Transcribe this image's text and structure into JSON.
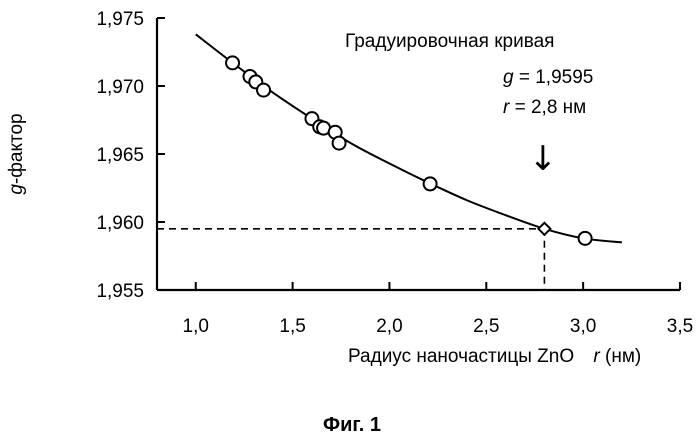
{
  "chart_data": {
    "type": "scatter",
    "xlabel_prefix": "Радиус наночастицы ZnO",
    "xlabel_var": "r",
    "xlabel_unit": " (нм)",
    "ylabel_var": "g",
    "ylabel_rest": "-фактор",
    "xlim": [
      0.8,
      3.5
    ],
    "ylim": [
      1.955,
      1.975
    ],
    "xticks": [
      1.0,
      1.5,
      2.0,
      2.5,
      3.0,
      3.5
    ],
    "xtick_labels": [
      "1,0",
      "1,5",
      "2,0",
      "2,5",
      "3,0",
      "3,5"
    ],
    "yticks": [
      1.955,
      1.96,
      1.965,
      1.97,
      1.975
    ],
    "ytick_labels": [
      "1,955",
      "1,960",
      "1,965",
      "1,970",
      "1,975"
    ],
    "series": [
      {
        "kind": "points",
        "x": [
          1.19,
          1.28,
          1.31,
          1.35,
          1.6,
          1.64,
          1.66,
          1.72,
          1.74,
          2.21,
          3.01
        ],
        "y": [
          1.9717,
          1.9707,
          1.9703,
          1.9697,
          1.9676,
          1.967,
          1.9669,
          1.9666,
          1.9658,
          1.9628,
          1.9588
        ]
      },
      {
        "kind": "fit-curve",
        "x": [
          1.0,
          1.2,
          1.4,
          1.6,
          1.8,
          2.0,
          2.2,
          2.4,
          2.6,
          2.8,
          3.0,
          3.2
        ],
        "y": [
          1.9738,
          1.9716,
          1.9695,
          1.9676,
          1.9658,
          1.9643,
          1.9629,
          1.9616,
          1.9605,
          1.9595,
          1.9588,
          1.9585
        ]
      }
    ],
    "marker": {
      "x": 2.8,
      "y": 1.9595
    },
    "annotations": {
      "title": "Градуировочная кривая",
      "g_var": "g",
      "g_value": " = 1,9595",
      "r_var": "r",
      "r_value": " = 2,8 нм",
      "arrow": "↓"
    },
    "caption": "Фиг. 1"
  }
}
